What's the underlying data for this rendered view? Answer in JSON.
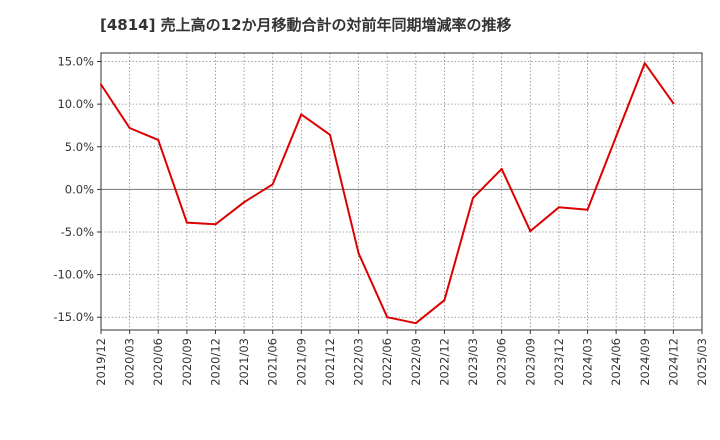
{
  "chart_data": {
    "type": "line",
    "title": "[4814]  売上高の12か月移動合計の対前年同期増減率の推移",
    "xlabel": "",
    "ylabel": "",
    "ylim": [
      -16.5,
      16.0
    ],
    "yticks": [
      15,
      10,
      5,
      0,
      -5,
      -10,
      -15
    ],
    "ytick_labels": [
      "15.0%",
      "10.0%",
      "5.0%",
      "0.0%",
      "-5.0%",
      "-10.0%",
      "-15.0%"
    ],
    "x_tick_labels": [
      "2019/12",
      "2020/03",
      "2020/06",
      "2020/09",
      "2020/12",
      "2021/03",
      "2021/06",
      "2021/09",
      "2021/12",
      "2022/03",
      "2022/06",
      "2022/09",
      "2022/12",
      "2023/03",
      "2023/06",
      "2023/09",
      "2023/12",
      "2024/03",
      "2024/06",
      "2024/09",
      "2024/12",
      "2025/03"
    ],
    "grid": true,
    "series": [
      {
        "name": "増減率",
        "color": "#dd0000",
        "values": [
          12.3,
          7.2,
          5.8,
          -3.9,
          -4.1,
          -1.5,
          0.6,
          8.8,
          6.4,
          -7.5,
          -15.0,
          -15.7,
          -13.0,
          -1.0,
          2.4,
          -4.9,
          -2.1,
          -2.4,
          6.2,
          14.8,
          10.1
        ]
      }
    ]
  }
}
